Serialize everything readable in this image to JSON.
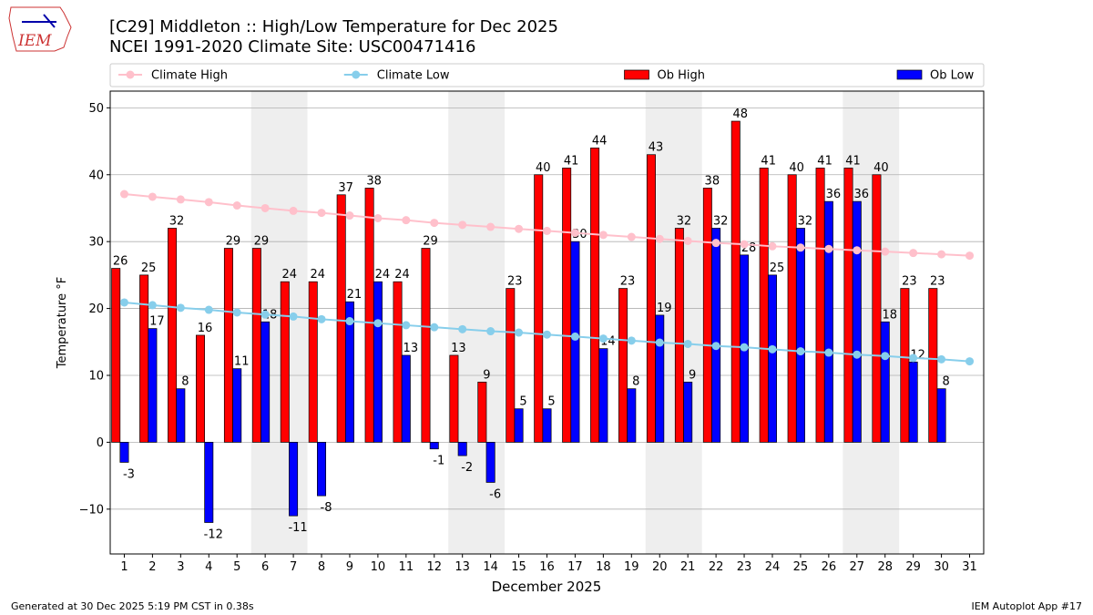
{
  "chart_data": {
    "type": "bar_line",
    "title": "[C29] Middleton :: High/Low Temperature for Dec 2025",
    "subtitle": "NCEI 1991-2020 Climate Site: USC00471416",
    "x_label": "December 2025",
    "y_label": "Temperature °F",
    "footer_left": "Generated at 30 Dec 2025 5:19 PM CST in 0.38s",
    "footer_right": "IEM Autoplot App #17",
    "logo_text": "IEM",
    "categories": [
      1,
      2,
      3,
      4,
      5,
      6,
      7,
      8,
      9,
      10,
      11,
      12,
      13,
      14,
      15,
      16,
      17,
      18,
      19,
      20,
      21,
      22,
      23,
      24,
      25,
      26,
      27,
      28,
      29,
      30,
      31
    ],
    "xlim": [
      0.5,
      31.5
    ],
    "ylim": [
      -16.7,
      52.5
    ],
    "yticks": [
      {
        "value": -10,
        "label": "−10"
      },
      0,
      10,
      20,
      30,
      40,
      50
    ],
    "grid": true,
    "legend": "top",
    "shaded_spans": [
      [
        5.5,
        7.5
      ],
      [
        12.5,
        14.5
      ],
      [
        19.5,
        21.5
      ],
      [
        26.5,
        28.5
      ]
    ],
    "series": [
      {
        "name": "Climate High",
        "kind": "line",
        "color": "#ffc0cb",
        "values": [
          37.1,
          36.7,
          36.3,
          35.9,
          35.4,
          35.0,
          34.6,
          34.3,
          33.9,
          33.5,
          33.2,
          32.8,
          32.5,
          32.2,
          31.9,
          31.6,
          31.3,
          31.0,
          30.7,
          30.4,
          30.1,
          29.8,
          29.6,
          29.3,
          29.1,
          28.9,
          28.7,
          28.5,
          28.3,
          28.1,
          27.9
        ]
      },
      {
        "name": "Climate Low",
        "kind": "line",
        "color": "#87ceeb",
        "values": [
          20.9,
          20.5,
          20.1,
          19.8,
          19.4,
          19.1,
          18.8,
          18.4,
          18.1,
          17.8,
          17.5,
          17.2,
          16.9,
          16.6,
          16.4,
          16.1,
          15.8,
          15.5,
          15.2,
          14.9,
          14.7,
          14.4,
          14.2,
          13.9,
          13.6,
          13.4,
          13.1,
          12.9,
          12.6,
          12.4,
          12.1
        ]
      },
      {
        "name": "Ob High",
        "kind": "bar",
        "color": "#ff0000",
        "values": [
          26,
          25,
          32,
          16,
          29,
          29,
          24,
          24,
          37,
          38,
          24,
          29,
          13,
          9,
          23,
          40,
          41,
          44,
          23,
          43,
          32,
          38,
          48,
          41,
          40,
          41,
          41,
          40,
          23,
          23,
          null
        ]
      },
      {
        "name": "Ob Low",
        "kind": "bar",
        "color": "#0000ff",
        "values": [
          -3,
          17,
          8,
          -12,
          11,
          18,
          -11,
          -8,
          21,
          24,
          13,
          -1,
          -2,
          -6,
          5,
          5,
          30,
          14,
          8,
          19,
          9,
          32,
          28,
          25,
          32,
          36,
          36,
          18,
          12,
          8,
          null
        ]
      }
    ]
  }
}
